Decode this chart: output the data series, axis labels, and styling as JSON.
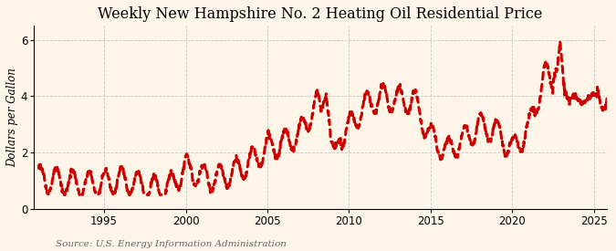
{
  "title": "Weekly New Hampshire No. 2 Heating Oil Residential Price",
  "ylabel": "Dollars per Gallon",
  "source": "Source: U.S. Energy Information Administration",
  "xlim": [
    1990.7,
    2025.8
  ],
  "ylim": [
    0,
    6.5
  ],
  "yticks": [
    0,
    2,
    4,
    6
  ],
  "xticks": [
    1995,
    2000,
    2005,
    2010,
    2015,
    2020,
    2025
  ],
  "line_color": "#cc0000",
  "bg_color": "#fdf6e8",
  "grid_color": "#bbbbbb",
  "title_fontsize": 11.5,
  "label_fontsize": 8.5,
  "tick_fontsize": 8.5,
  "source_fontsize": 7.5,
  "annual_prices": {
    "1991": 1.1,
    "1992": 0.98,
    "1993": 0.92,
    "1994": 0.88,
    "1995": 0.93,
    "1996": 1.02,
    "1997": 0.9,
    "1998": 0.72,
    "1999": 0.77,
    "2000": 1.45,
    "2001": 1.15,
    "2002": 1.08,
    "2003": 1.32,
    "2004": 1.68,
    "2005": 2.15,
    "2006": 2.38,
    "2007": 2.65,
    "2008": 3.8,
    "2009": 2.25,
    "2010": 2.9,
    "2011": 3.7,
    "2012": 3.95,
    "2013": 3.88,
    "2014": 3.82,
    "2015": 2.55,
    "2016": 2.05,
    "2017": 2.45,
    "2018": 2.95,
    "2019": 2.75,
    "2020": 2.1,
    "2021": 2.85,
    "2022": 4.8,
    "2023": 4.1,
    "2024": 3.9,
    "2025": 3.95
  },
  "seasonal_amplitude": 0.45,
  "noise_std": 0.05
}
